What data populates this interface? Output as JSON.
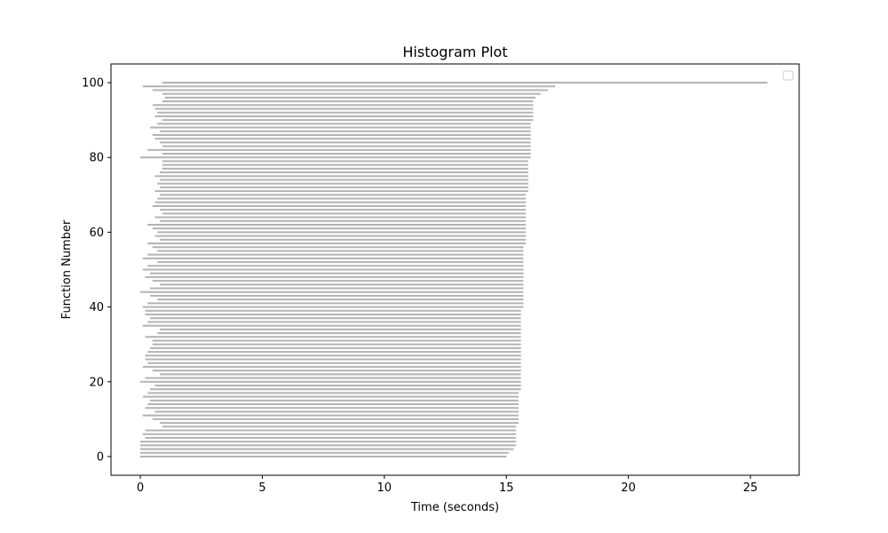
{
  "chart_data": {
    "type": "bar",
    "orientation": "horizontal-range",
    "title": "Histogram Plot",
    "xlabel": "Time (seconds)",
    "ylabel": "Function Number",
    "xlim": [
      -1.2,
      27.0
    ],
    "ylim": [
      -5.0,
      105.0
    ],
    "xticks": [
      0,
      5,
      10,
      15,
      20,
      25
    ],
    "yticks": [
      0,
      20,
      40,
      60,
      80,
      100
    ],
    "grid": false,
    "legend": {
      "visible": true,
      "placement": "top-right",
      "entries": []
    },
    "bar_color": "#b3b3b3",
    "y": [
      0,
      1,
      2,
      3,
      4,
      5,
      6,
      7,
      8,
      9,
      10,
      11,
      12,
      13,
      14,
      15,
      16,
      17,
      18,
      19,
      20,
      21,
      22,
      23,
      24,
      25,
      26,
      27,
      28,
      29,
      30,
      31,
      32,
      33,
      34,
      35,
      36,
      37,
      38,
      39,
      40,
      41,
      42,
      43,
      44,
      45,
      46,
      47,
      48,
      49,
      50,
      51,
      52,
      53,
      54,
      55,
      56,
      57,
      58,
      59,
      60,
      61,
      62,
      63,
      64,
      65,
      66,
      67,
      68,
      69,
      70,
      71,
      72,
      73,
      74,
      75,
      76,
      77,
      78,
      79,
      80,
      81,
      82,
      83,
      84,
      85,
      86,
      87,
      88,
      89,
      90,
      91,
      92,
      93,
      94,
      95,
      96,
      97,
      98,
      99,
      100
    ],
    "start": [
      0.0,
      0.0,
      0.0,
      0.0,
      0.0,
      0.2,
      0.1,
      0.2,
      0.9,
      0.8,
      0.5,
      0.1,
      0.6,
      0.2,
      0.3,
      0.4,
      0.1,
      0.3,
      0.4,
      0.6,
      0.0,
      0.2,
      0.8,
      0.5,
      0.1,
      0.3,
      0.2,
      0.2,
      0.3,
      0.4,
      0.5,
      0.5,
      0.2,
      0.7,
      0.8,
      0.1,
      0.3,
      0.4,
      0.2,
      0.2,
      0.1,
      0.3,
      0.7,
      0.4,
      0.0,
      0.4,
      0.8,
      0.5,
      0.2,
      0.4,
      0.1,
      0.3,
      0.7,
      0.1,
      0.3,
      0.7,
      0.5,
      0.3,
      0.8,
      0.6,
      0.7,
      0.5,
      0.3,
      0.8,
      0.6,
      0.9,
      0.8,
      0.5,
      0.6,
      0.7,
      0.8,
      0.6,
      0.8,
      0.7,
      0.8,
      0.6,
      0.8,
      0.9,
      0.9,
      0.9,
      0.0,
      0.9,
      0.3,
      0.9,
      0.8,
      0.6,
      0.5,
      0.8,
      0.4,
      0.7,
      0.9,
      0.6,
      0.7,
      0.6,
      0.5,
      0.9,
      1.0,
      0.9,
      0.5,
      0.1,
      0.9
    ],
    "end": [
      15.0,
      15.1,
      15.3,
      15.4,
      15.4,
      15.4,
      15.4,
      15.4,
      15.4,
      15.5,
      15.5,
      15.5,
      15.5,
      15.5,
      15.5,
      15.5,
      15.5,
      15.5,
      15.6,
      15.6,
      15.6,
      15.6,
      15.6,
      15.6,
      15.6,
      15.6,
      15.6,
      15.6,
      15.6,
      15.6,
      15.6,
      15.6,
      15.6,
      15.6,
      15.6,
      15.6,
      15.6,
      15.6,
      15.6,
      15.6,
      15.7,
      15.7,
      15.7,
      15.7,
      15.7,
      15.7,
      15.7,
      15.7,
      15.7,
      15.7,
      15.7,
      15.7,
      15.7,
      15.7,
      15.7,
      15.7,
      15.7,
      15.8,
      15.8,
      15.8,
      15.8,
      15.8,
      15.8,
      15.8,
      15.8,
      15.8,
      15.8,
      15.8,
      15.8,
      15.8,
      15.8,
      15.9,
      15.9,
      15.9,
      15.9,
      15.9,
      15.9,
      15.9,
      15.9,
      15.9,
      16.0,
      16.0,
      16.0,
      16.0,
      16.0,
      16.0,
      16.0,
      16.0,
      16.0,
      16.0,
      16.1,
      16.1,
      16.1,
      16.1,
      16.1,
      16.1,
      16.2,
      16.4,
      16.7,
      17.0,
      25.7
    ]
  }
}
